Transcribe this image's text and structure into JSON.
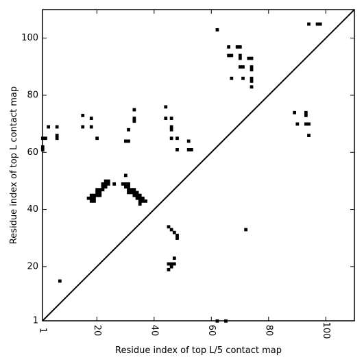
{
  "chart_data": {
    "type": "scatter",
    "title": "",
    "xlabel": "Residue index of top L/5 contact map",
    "ylabel": "Residue index of top L contact map",
    "xlim": [
      1,
      110
    ],
    "ylim": [
      1,
      110
    ],
    "x_ticks": [
      1,
      20,
      40,
      60,
      80,
      100
    ],
    "x_tick_labels": [
      "1",
      "20",
      "40",
      "60",
      "80",
      "100"
    ],
    "y_ticks": [
      1,
      20,
      40,
      60,
      80,
      100
    ],
    "y_tick_labels": [
      "1",
      "20",
      "40",
      "60",
      "80",
      "100"
    ],
    "x_tick_rotation": -90,
    "grid": false,
    "marker": "square",
    "marker_color": "#000000",
    "diagonal": {
      "from": [
        1,
        1
      ],
      "to": [
        110,
        110
      ],
      "color": "#000000"
    },
    "series": [
      {
        "points": [
          [
            1,
            61
          ],
          [
            1,
            62
          ],
          [
            1,
            65
          ],
          [
            2,
            65
          ],
          [
            3,
            69
          ],
          [
            6,
            65
          ],
          [
            6,
            66
          ],
          [
            6,
            69
          ],
          [
            7,
            15
          ],
          [
            15,
            69
          ],
          [
            15,
            73
          ],
          [
            18,
            69
          ],
          [
            18,
            72
          ],
          [
            20,
            65
          ],
          [
            17,
            44
          ],
          [
            18,
            43
          ],
          [
            18,
            44
          ],
          [
            18,
            45
          ],
          [
            19,
            43
          ],
          [
            19,
            44
          ],
          [
            19,
            45
          ],
          [
            20,
            45
          ],
          [
            20,
            46
          ],
          [
            20,
            47
          ],
          [
            21,
            45
          ],
          [
            21,
            46
          ],
          [
            21,
            47
          ],
          [
            22,
            47
          ],
          [
            22,
            48
          ],
          [
            22,
            49
          ],
          [
            23,
            48
          ],
          [
            23,
            49
          ],
          [
            23,
            50
          ],
          [
            24,
            49
          ],
          [
            24,
            50
          ],
          [
            26,
            49
          ],
          [
            29,
            49
          ],
          [
            30,
            48
          ],
          [
            30,
            49
          ],
          [
            30,
            52
          ],
          [
            31,
            46
          ],
          [
            31,
            47
          ],
          [
            31,
            48
          ],
          [
            31,
            49
          ],
          [
            32,
            46
          ],
          [
            32,
            47
          ],
          [
            33,
            45
          ],
          [
            33,
            46
          ],
          [
            33,
            47
          ],
          [
            34,
            44
          ],
          [
            34,
            45
          ],
          [
            34,
            46
          ],
          [
            35,
            42
          ],
          [
            35,
            43
          ],
          [
            35,
            44
          ],
          [
            35,
            45
          ],
          [
            36,
            43
          ],
          [
            36,
            44
          ],
          [
            37,
            43
          ],
          [
            30,
            64
          ],
          [
            31,
            64
          ],
          [
            31,
            68
          ],
          [
            33,
            71
          ],
          [
            33,
            72
          ],
          [
            33,
            75
          ],
          [
            44,
            72
          ],
          [
            44,
            76
          ],
          [
            46,
            65
          ],
          [
            46,
            68
          ],
          [
            46,
            69
          ],
          [
            46,
            72
          ],
          [
            48,
            61
          ],
          [
            48,
            65
          ],
          [
            52,
            61
          ],
          [
            52,
            64
          ],
          [
            53,
            61
          ],
          [
            45,
            19
          ],
          [
            45,
            21
          ],
          [
            46,
            20
          ],
          [
            46,
            21
          ],
          [
            47,
            21
          ],
          [
            47,
            23
          ],
          [
            45,
            34
          ],
          [
            46,
            33
          ],
          [
            47,
            32
          ],
          [
            48,
            30
          ],
          [
            48,
            31
          ],
          [
            62,
            1
          ],
          [
            65,
            1
          ],
          [
            62,
            103
          ],
          [
            66,
            94
          ],
          [
            66,
            97
          ],
          [
            67,
            86
          ],
          [
            67,
            94
          ],
          [
            69,
            97
          ],
          [
            70,
            90
          ],
          [
            70,
            93
          ],
          [
            70,
            94
          ],
          [
            70,
            97
          ],
          [
            71,
            86
          ],
          [
            71,
            90
          ],
          [
            73,
            93
          ],
          [
            74,
            83
          ],
          [
            74,
            85
          ],
          [
            74,
            86
          ],
          [
            74,
            89
          ],
          [
            74,
            90
          ],
          [
            74,
            93
          ],
          [
            72,
            33
          ],
          [
            89,
            74
          ],
          [
            90,
            70
          ],
          [
            93,
            70
          ],
          [
            93,
            73
          ],
          [
            93,
            74
          ],
          [
            94,
            66
          ],
          [
            94,
            70
          ],
          [
            94,
            105
          ],
          [
            97,
            105
          ],
          [
            98,
            105
          ]
        ]
      }
    ]
  }
}
